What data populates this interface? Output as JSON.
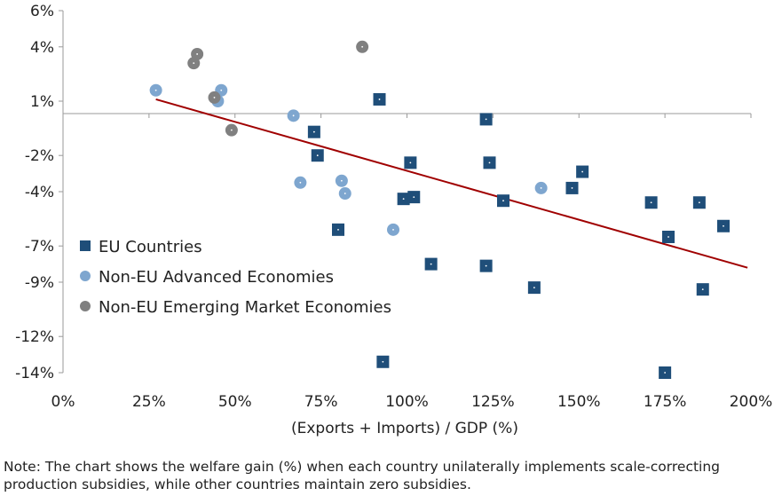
{
  "chart_data": {
    "type": "scatter",
    "xlabel": "(Exports + Imports) / GDP (%)",
    "xlim": [
      0,
      200
    ],
    "ylim": [
      -14,
      6
    ],
    "x_ticks": [
      0,
      25,
      50,
      75,
      100,
      125,
      150,
      175,
      200
    ],
    "x_tick_labels": [
      "0%",
      "25%",
      "50%",
      "75%",
      "100%",
      "125%",
      "150%",
      "175%",
      "200%"
    ],
    "y_ticks": [
      6,
      4,
      1,
      -2,
      -4,
      -7,
      -9,
      -12,
      -14
    ],
    "y_tick_labels": [
      "6%",
      "4%",
      "1%",
      "-2%",
      "-4%",
      "-7%",
      "-9%",
      "-12%",
      "-14%"
    ],
    "grid": false,
    "legend_position": "left",
    "series": [
      {
        "name": "EU Countries",
        "marker": "square",
        "color": "#1f4e79",
        "points": [
          [
            92,
            1.1
          ],
          [
            73,
            -0.7
          ],
          [
            74,
            -2.0
          ],
          [
            101,
            -2.4
          ],
          [
            99,
            -4.4
          ],
          [
            102,
            -4.3
          ],
          [
            80,
            -6.1
          ],
          [
            107,
            -8.0
          ],
          [
            93,
            -13.4
          ],
          [
            123,
            0.0
          ],
          [
            124,
            -2.4
          ],
          [
            128,
            -4.5
          ],
          [
            123,
            -8.1
          ],
          [
            137,
            -9.3
          ],
          [
            148,
            -3.8
          ],
          [
            151,
            -2.9
          ],
          [
            171,
            -4.6
          ],
          [
            176,
            -6.5
          ],
          [
            185,
            -4.6
          ],
          [
            192,
            -5.9
          ],
          [
            186,
            -9.4
          ],
          [
            175,
            -14.0
          ]
        ]
      },
      {
        "name": "Non-EU Advanced Economies",
        "marker": "circle",
        "color": "#7ea6cf",
        "points": [
          [
            27,
            1.6
          ],
          [
            45,
            1.0
          ],
          [
            46,
            1.6
          ],
          [
            67,
            0.2
          ],
          [
            69,
            -3.5
          ],
          [
            81,
            -3.4
          ],
          [
            82,
            -4.1
          ],
          [
            96,
            -6.1
          ],
          [
            139,
            -3.8
          ]
        ]
      },
      {
        "name": "Non-EU Emerging Market Economies",
        "marker": "circle",
        "color": "#808080",
        "points": [
          [
            38,
            3.1
          ],
          [
            39,
            3.6
          ],
          [
            44,
            1.2
          ],
          [
            49,
            -0.6
          ],
          [
            87,
            4.0
          ]
        ]
      }
    ],
    "trendline": {
      "color": "#a00000",
      "x": [
        27,
        199
      ],
      "y": [
        1.1,
        -8.2
      ]
    }
  },
  "note": "Note: The chart shows the welfare gain (%) when each country unilaterally implements scale-correcting production subsidies, while other countries maintain zero subsidies."
}
